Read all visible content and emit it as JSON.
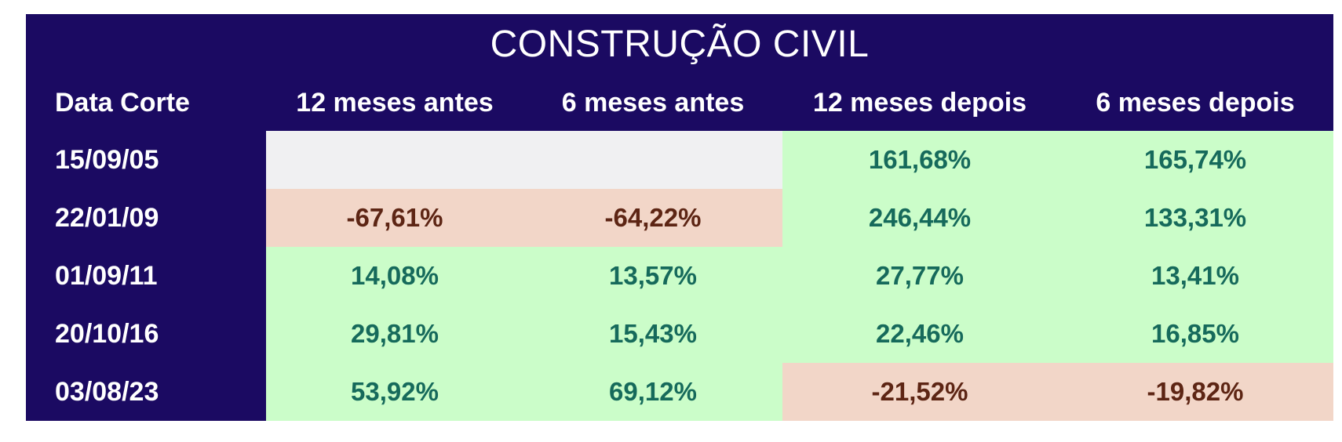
{
  "title": "CONSTRUÇÃO CIVIL",
  "columns": [
    "Data Corte",
    "12 meses antes",
    "6 meses antes",
    "12 meses depois",
    "6 meses depois"
  ],
  "rows": [
    {
      "date": "15/09/05",
      "cells": [
        {
          "value": "",
          "state": "empty"
        },
        {
          "value": "",
          "state": "empty"
        },
        {
          "value": "161,68%",
          "state": "positive"
        },
        {
          "value": "165,74%",
          "state": "positive"
        }
      ]
    },
    {
      "date": "22/01/09",
      "cells": [
        {
          "value": "-67,61%",
          "state": "negative"
        },
        {
          "value": "-64,22%",
          "state": "negative"
        },
        {
          "value": "246,44%",
          "state": "positive"
        },
        {
          "value": "133,31%",
          "state": "positive"
        }
      ]
    },
    {
      "date": "01/09/11",
      "cells": [
        {
          "value": "14,08%",
          "state": "positive"
        },
        {
          "value": "13,57%",
          "state": "positive"
        },
        {
          "value": "27,77%",
          "state": "positive"
        },
        {
          "value": "13,41%",
          "state": "positive"
        }
      ]
    },
    {
      "date": "20/10/16",
      "cells": [
        {
          "value": "29,81%",
          "state": "positive"
        },
        {
          "value": "15,43%",
          "state": "positive"
        },
        {
          "value": "22,46%",
          "state": "positive"
        },
        {
          "value": "16,85%",
          "state": "positive"
        }
      ]
    },
    {
      "date": "03/08/23",
      "cells": [
        {
          "value": "53,92%",
          "state": "positive"
        },
        {
          "value": "69,12%",
          "state": "positive"
        },
        {
          "value": "-21,52%",
          "state": "negative"
        },
        {
          "value": "-19,82%",
          "state": "negative"
        }
      ]
    }
  ],
  "colors": {
    "header_bg": "#1B0A62",
    "header_text": "#FFFFFF",
    "positive_bg": "#CBFDC9",
    "positive_text": "#166A5B",
    "negative_bg": "#F2D6C8",
    "negative_text": "#5D2514",
    "empty_bg": "#F0F0F2"
  },
  "chart_data": {
    "type": "table",
    "title": "CONSTRUÇÃO CIVIL",
    "columns": [
      "Data Corte",
      "12 meses antes",
      "6 meses antes",
      "12 meses depois",
      "6 meses depois"
    ],
    "dates": [
      "15/09/05",
      "22/01/09",
      "01/09/11",
      "20/10/16",
      "03/08/23"
    ],
    "values_percent": [
      [
        null,
        null,
        161.68,
        165.74
      ],
      [
        -67.61,
        -64.22,
        246.44,
        133.31
      ],
      [
        14.08,
        13.57,
        27.77,
        13.41
      ],
      [
        29.81,
        15.43,
        22.46,
        16.85
      ],
      [
        53.92,
        69.12,
        -21.52,
        -19.82
      ]
    ],
    "cell_highlighting": "positive values on light green, negative values on light salmon, missing values on light gray",
    "number_format": "pt-BR percent with comma decimal separator"
  }
}
